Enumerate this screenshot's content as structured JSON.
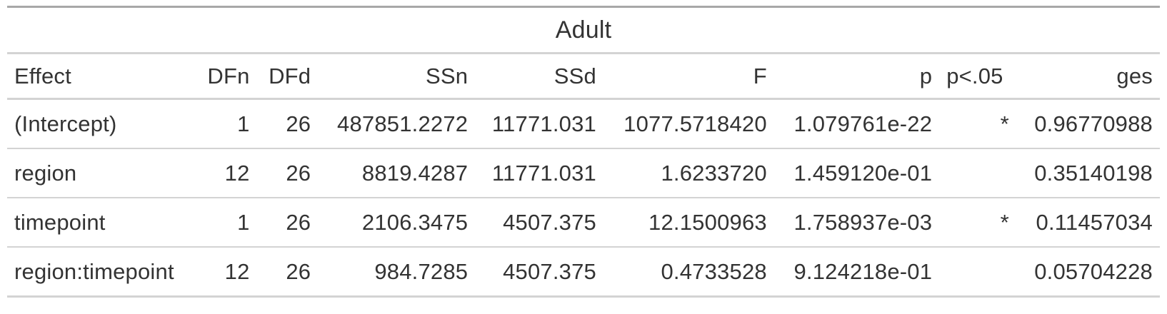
{
  "table": {
    "title": "Adult",
    "columns": [
      "Effect",
      "DFn",
      "DFd",
      "SSn",
      "SSd",
      "F",
      "p",
      "p<.05",
      "ges"
    ],
    "rows": [
      [
        "(Intercept)",
        "1",
        "26",
        "487851.2272",
        "11771.031",
        "1077.5718420",
        "1.079761e-22",
        "*",
        "0.96770988"
      ],
      [
        "region",
        "12",
        "26",
        "8819.4287",
        "11771.031",
        "1.6233720",
        "1.459120e-01",
        "",
        "0.35140198"
      ],
      [
        "timepoint",
        "1",
        "26",
        "2106.3475",
        "4507.375",
        "12.1500963",
        "1.758937e-03",
        "*",
        "0.11457034"
      ],
      [
        "region:timepoint",
        "12",
        "26",
        "984.7285",
        "4507.375",
        "0.4733528",
        "9.124218e-01",
        "",
        "0.05704228"
      ]
    ]
  }
}
